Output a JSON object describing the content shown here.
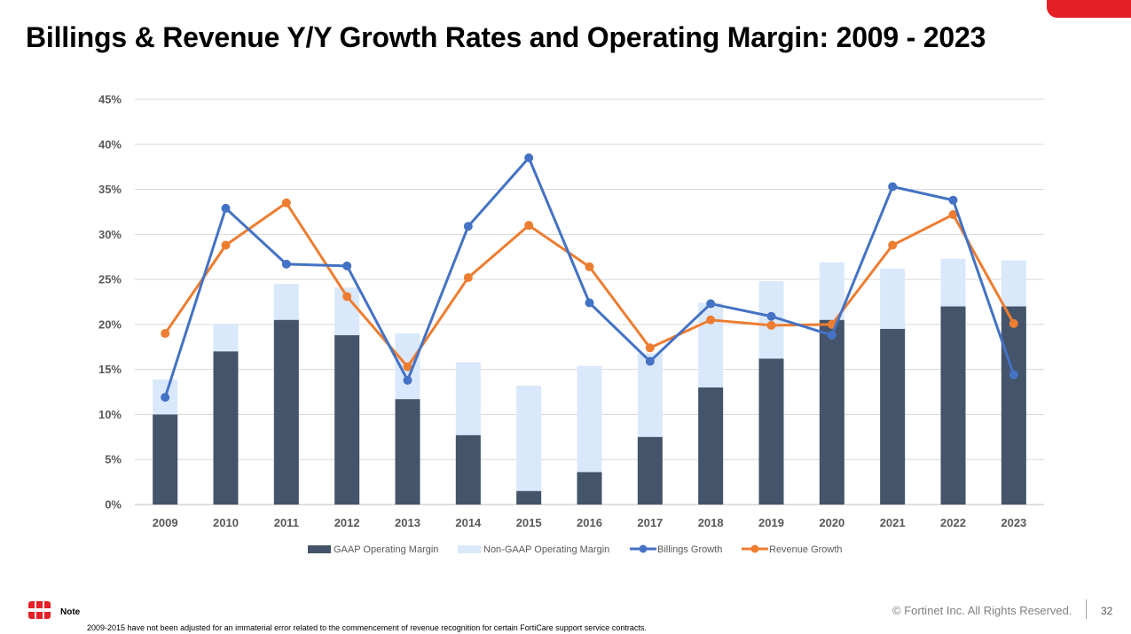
{
  "slide": {
    "title": "Billings & Revenue Y/Y Growth Rates and Operating Margin: 2009 - 2023",
    "note_label": "Note",
    "note_text": "2009-2015 have not been adjusted for an immaterial error related to the commencement of revenue recognition for certain FortiCare support service contracts.",
    "copyright": "© Fortinet Inc. All Rights Reserved.",
    "page_number": "32",
    "logo_icon": "fortinet-logo-icon",
    "accent_color": "#e41f26"
  },
  "chart_data": {
    "type": "bar",
    "title": "",
    "xlabel": "",
    "ylabel": "",
    "categories": [
      "2009",
      "2010",
      "2011",
      "2012",
      "2013",
      "2014",
      "2015",
      "2016",
      "2017",
      "2018",
      "2019",
      "2020",
      "2021",
      "2022",
      "2023"
    ],
    "ylim": [
      0,
      45
    ],
    "yticks": [
      0,
      5,
      10,
      15,
      20,
      25,
      30,
      35,
      40,
      45
    ],
    "ytick_labels": [
      "0%",
      "5%",
      "10%",
      "15%",
      "20%",
      "25%",
      "30%",
      "35%",
      "40%",
      "45%"
    ],
    "grid": true,
    "legend_position": "bottom",
    "series": [
      {
        "name": "GAAP Operating Margin",
        "kind": "bar",
        "color": "#44546a",
        "values": [
          10.0,
          17.0,
          20.5,
          18.8,
          11.7,
          7.7,
          1.5,
          3.6,
          7.5,
          13.0,
          16.2,
          20.5,
          19.5,
          22.0,
          22.0
        ]
      },
      {
        "name": "Non-GAAP Operating Margin",
        "kind": "bar",
        "color": "#dae8fc",
        "values": [
          13.9,
          20.0,
          24.5,
          24.1,
          19.0,
          15.8,
          13.2,
          15.4,
          16.8,
          22.4,
          24.8,
          26.9,
          26.2,
          27.3,
          27.1
        ]
      },
      {
        "name": "Billings Growth",
        "kind": "line",
        "color": "#4472c4",
        "values": [
          11.9,
          32.9,
          26.7,
          26.5,
          13.8,
          30.9,
          38.5,
          22.4,
          15.9,
          22.3,
          20.9,
          18.8,
          35.3,
          33.8,
          14.4
        ]
      },
      {
        "name": "Revenue Growth",
        "kind": "line",
        "color": "#ed7d31",
        "values": [
          19.0,
          28.8,
          33.5,
          23.1,
          15.3,
          25.2,
          31.0,
          26.4,
          17.4,
          20.5,
          19.9,
          20.0,
          28.8,
          32.2,
          20.1
        ]
      }
    ]
  }
}
